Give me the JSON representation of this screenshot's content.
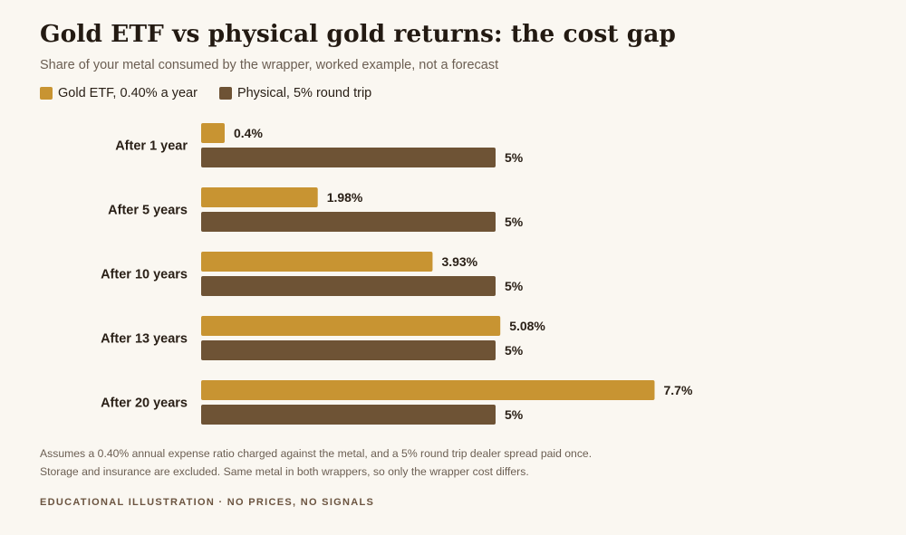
{
  "title": "Gold ETF vs physical gold returns: the cost gap",
  "subtitle": "Share of your metal consumed by the wrapper, worked example, not a forecast",
  "legend": [
    {
      "label": "Gold ETF, 0.40% a year",
      "color": "#c89432"
    },
    {
      "label": "Physical, 5% round trip",
      "color": "#6e5335"
    }
  ],
  "chart_data": {
    "type": "bar",
    "orientation": "horizontal",
    "categories": [
      "After 1 year",
      "After 5 years",
      "After 10 years",
      "After 13 years",
      "After 20 years"
    ],
    "series": [
      {
        "name": "Gold ETF, 0.40% a year",
        "values": [
          0.4,
          1.98,
          3.93,
          5.08,
          7.7
        ],
        "labels": [
          "0.4%",
          "1.98%",
          "3.93%",
          "5.08%",
          "7.7%"
        ],
        "color": "#c89432"
      },
      {
        "name": "Physical, 5% round trip",
        "values": [
          5,
          5,
          5,
          5,
          5
        ],
        "labels": [
          "5%",
          "5%",
          "5%",
          "5%",
          "5%"
        ],
        "color": "#6e5335"
      }
    ],
    "grid": false,
    "legend_position": "top-left"
  },
  "footnote": {
    "line1": "Assumes a 0.40% annual expense ratio charged against the metal, and a 5% round trip dealer spread paid once.",
    "line2": "Storage and insurance are excluded. Same metal in both wrappers, so only the wrapper cost differs."
  },
  "footer_tag": "EDUCATIONAL ILLUSTRATION · NO PRICES, NO SIGNALS"
}
